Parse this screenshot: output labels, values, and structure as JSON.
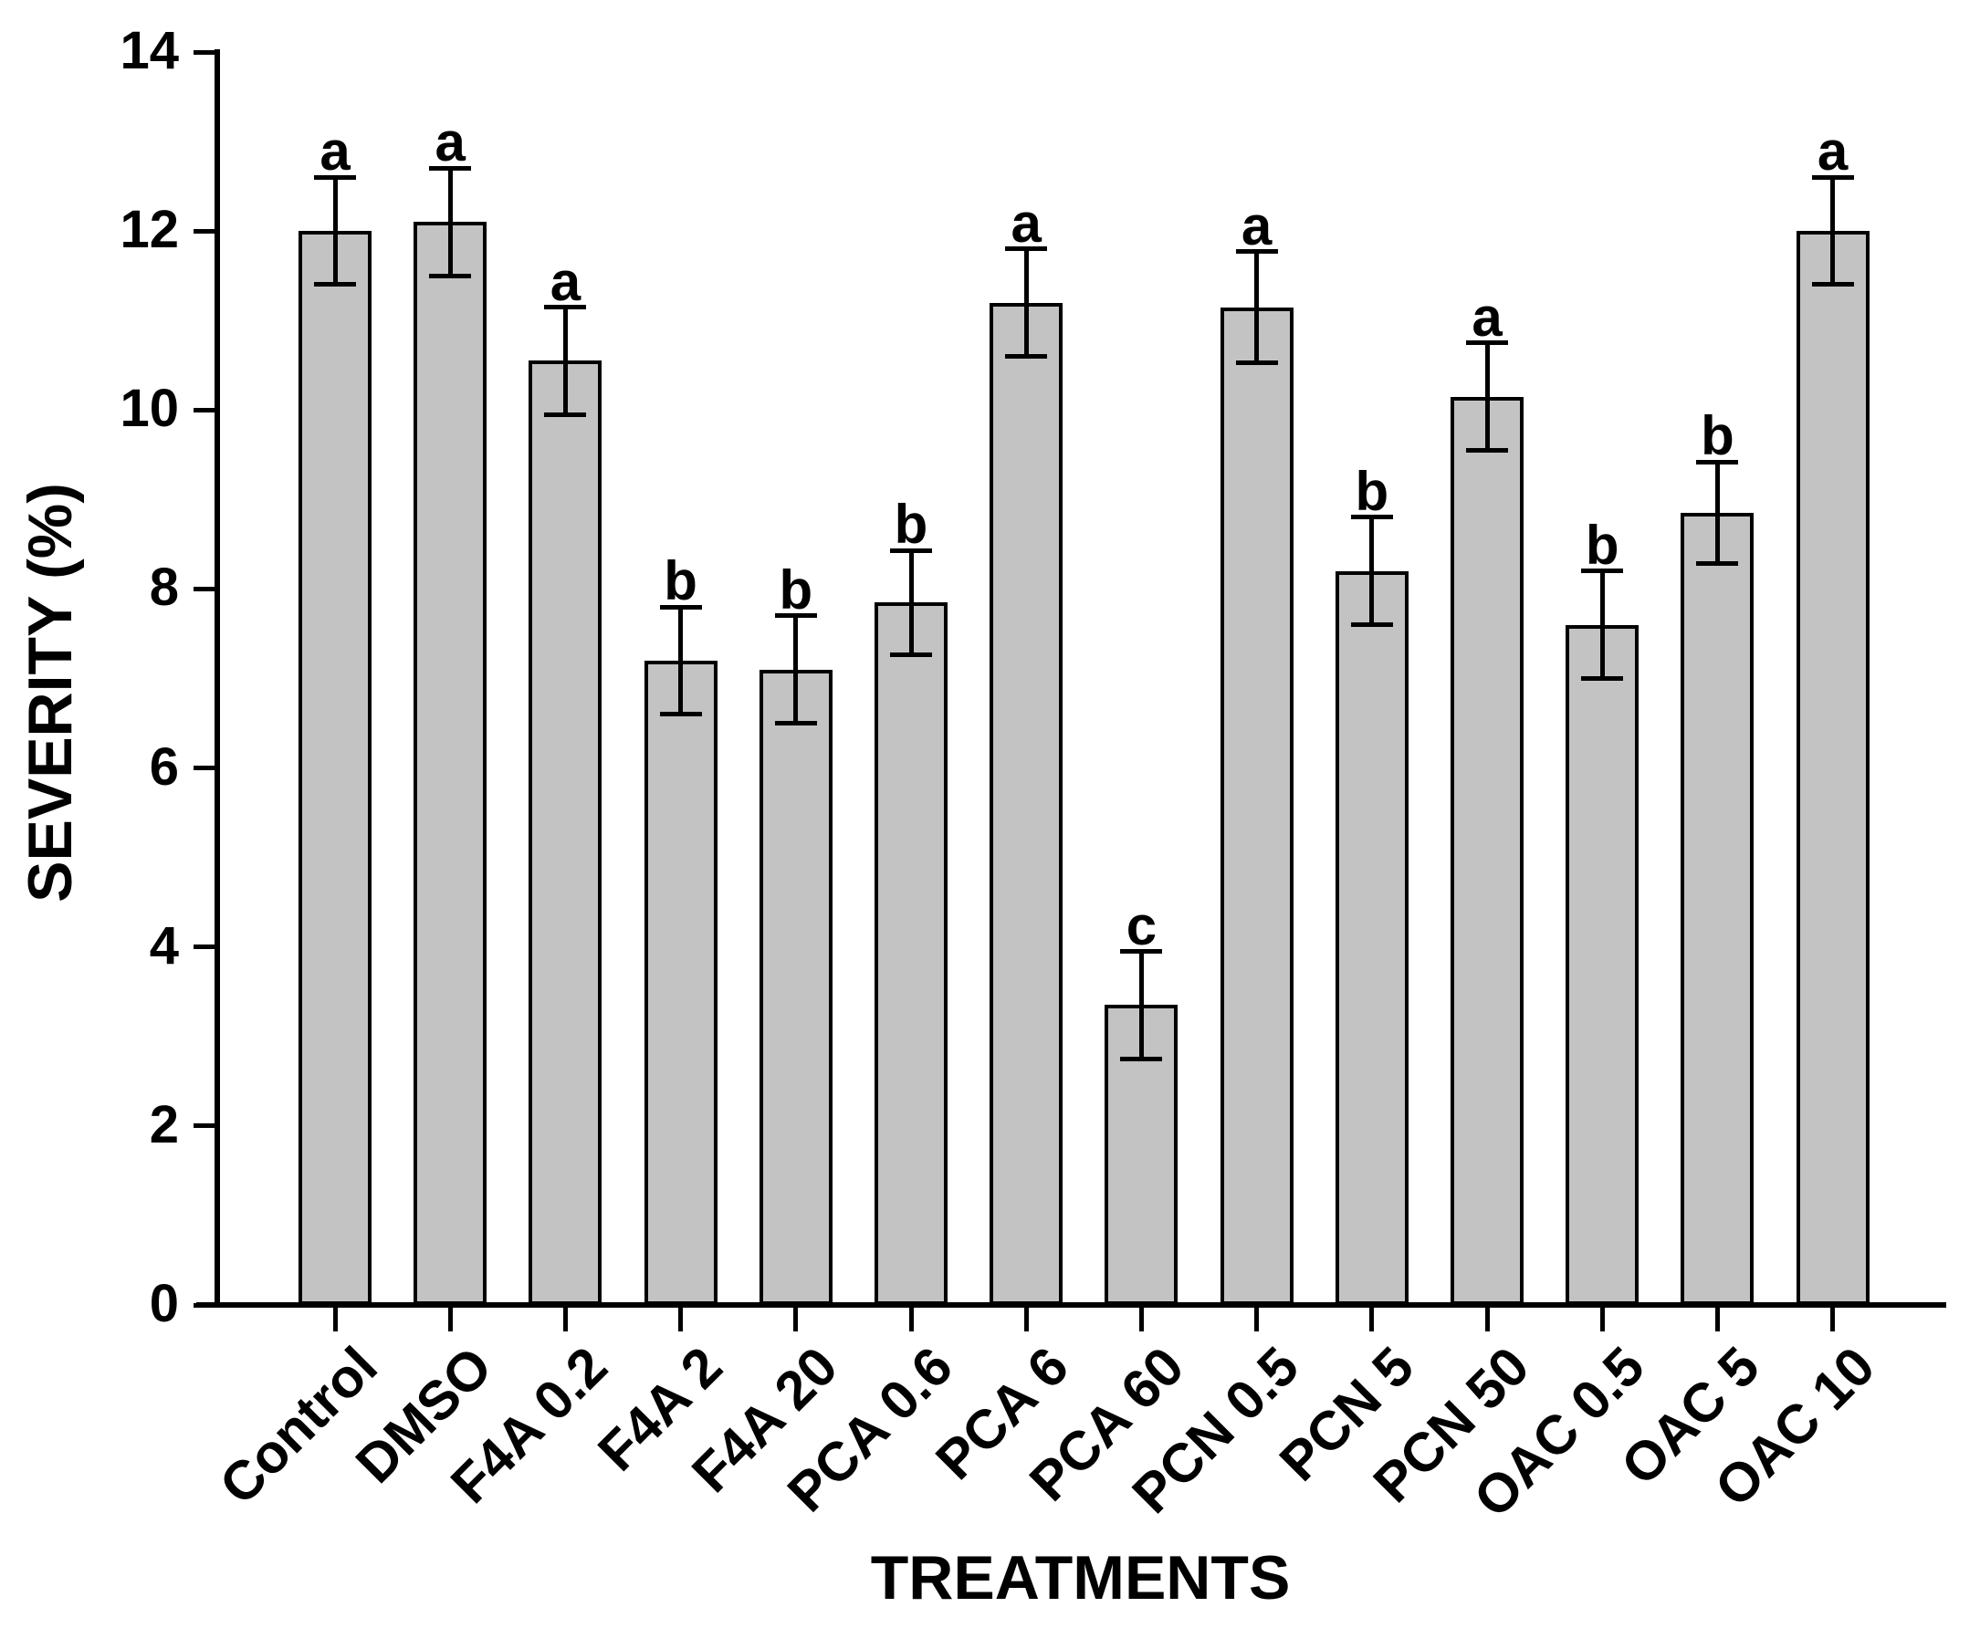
{
  "figure": {
    "y_axis_title": "SEVERITY (%)",
    "x_axis_title": "TREATMENTS",
    "y_tick_labels": [
      "0",
      "2",
      "4",
      "6",
      "8",
      "10",
      "12",
      "14"
    ]
  },
  "chart_data": {
    "type": "bar",
    "title": "",
    "xlabel": "TREATMENTS",
    "ylabel": "SEVERITY (%)",
    "ylim": [
      0,
      14
    ],
    "ytick_step": 2,
    "grid": false,
    "legend": "none",
    "bar_color": "#c3c3c3",
    "bar_edge_color": "#000000",
    "categories": [
      "Control",
      "DMSO",
      "F4A 0.2",
      "F4A 2",
      "F4A 20",
      "PCA 0.6",
      "PCA 6",
      "PCA 60",
      "PCN 0.5",
      "PCN 5",
      "PCN 50",
      "OAC 0.5",
      "OAC 5",
      "OAC 10"
    ],
    "values": [
      12.0,
      12.1,
      10.55,
      7.2,
      7.1,
      7.85,
      11.2,
      3.35,
      11.15,
      8.2,
      10.15,
      7.6,
      8.85,
      12.0
    ],
    "errors": [
      0.6,
      0.6,
      0.6,
      0.6,
      0.6,
      0.58,
      0.6,
      0.6,
      0.62,
      0.6,
      0.6,
      0.6,
      0.57,
      0.6
    ],
    "sig_letters": [
      "a",
      "a",
      "a",
      "b",
      "b",
      "b",
      "a",
      "c",
      "a",
      "b",
      "a",
      "b",
      "b",
      "a"
    ]
  }
}
